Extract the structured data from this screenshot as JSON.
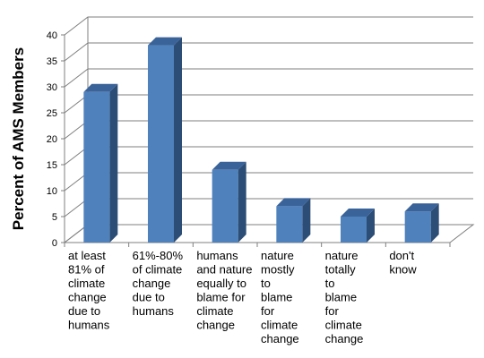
{
  "chart_data": {
    "type": "bar",
    "ylabel": "Percent of AMS Members",
    "xlabel": "",
    "ylim": [
      0,
      40
    ],
    "yticks": [
      0,
      5,
      10,
      15,
      20,
      25,
      30,
      35,
      40
    ],
    "grid": true,
    "categories": [
      "at least 81% of climate change due to humans",
      "61%-80% of climate change due to humans",
      "humans and nature equally to blame for climate change",
      "nature mostly to blame for climate change",
      "nature totally to blame for climate change",
      "don't know"
    ],
    "category_lines": [
      [
        "at least",
        "81% of",
        "climate",
        "change",
        "due to",
        "humans"
      ],
      [
        "61%-80%",
        "of climate",
        "change",
        "due to",
        "humans"
      ],
      [
        "humans",
        "and nature",
        "equally to",
        "blame for",
        "climate",
        "change"
      ],
      [
        "nature",
        "mostly",
        "to",
        "blame",
        "for",
        "climate",
        "change"
      ],
      [
        "nature",
        "totally",
        "to",
        "blame",
        "for",
        "climate",
        "change"
      ],
      [
        "don't",
        "know"
      ]
    ],
    "values": [
      29,
      38,
      14,
      7,
      5,
      6
    ],
    "bar_color": "#4f81bd",
    "bar_side_color": "#2c4d75",
    "bar_top_color": "#3a639a"
  }
}
